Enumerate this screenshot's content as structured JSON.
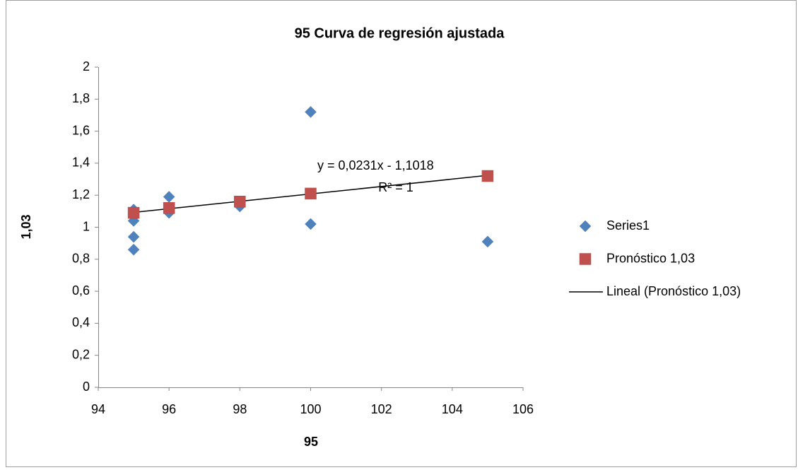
{
  "chart_data": {
    "type": "scatter",
    "title": "95 Curva de regresión ajustada",
    "x_label": "95",
    "y_label": "1,03",
    "xlim": [
      94,
      106
    ],
    "xticks": [
      94,
      96,
      98,
      100,
      102,
      104,
      106
    ],
    "ylim": [
      0,
      2
    ],
    "yticks": [
      0,
      {
        "value": 0.2,
        "label": "0,2"
      },
      {
        "value": 0.4,
        "label": "0,4"
      },
      {
        "value": 0.6,
        "label": "0,6"
      },
      {
        "value": 0.8,
        "label": "0,8"
      },
      1,
      {
        "value": 1.2,
        "label": "1,2"
      },
      {
        "value": 1.4,
        "label": "1,4"
      },
      {
        "value": 1.6,
        "label": "1,6"
      },
      {
        "value": 1.8,
        "label": "1,8"
      },
      2
    ],
    "grid": false,
    "legend": "right",
    "series": [
      {
        "name": "Series1",
        "color": "#4f81bd",
        "marker": "diamond",
        "x": [
          95,
          95,
          95,
          95,
          96,
          96,
          98,
          100,
          100,
          105
        ],
        "values": [
          1.11,
          1.04,
          0.94,
          0.86,
          1.19,
          1.09,
          1.13,
          1.72,
          1.02,
          0.91
        ]
      },
      {
        "name": "Pronóstico 1,03",
        "color": "#c0504d",
        "marker": "square",
        "x": [
          95,
          96,
          98,
          100,
          105
        ],
        "values": [
          1.09,
          1.12,
          1.16,
          1.21,
          1.32
        ]
      },
      {
        "name": "Lineal (Pronóstico 1,03)",
        "color": "#000000",
        "marker": "line",
        "x": [
          95,
          105
        ],
        "values": [
          1.0927,
          1.3237
        ]
      }
    ],
    "annotations": [
      "y = 0,0231x - 1,1018",
      "R² = 1"
    ]
  }
}
